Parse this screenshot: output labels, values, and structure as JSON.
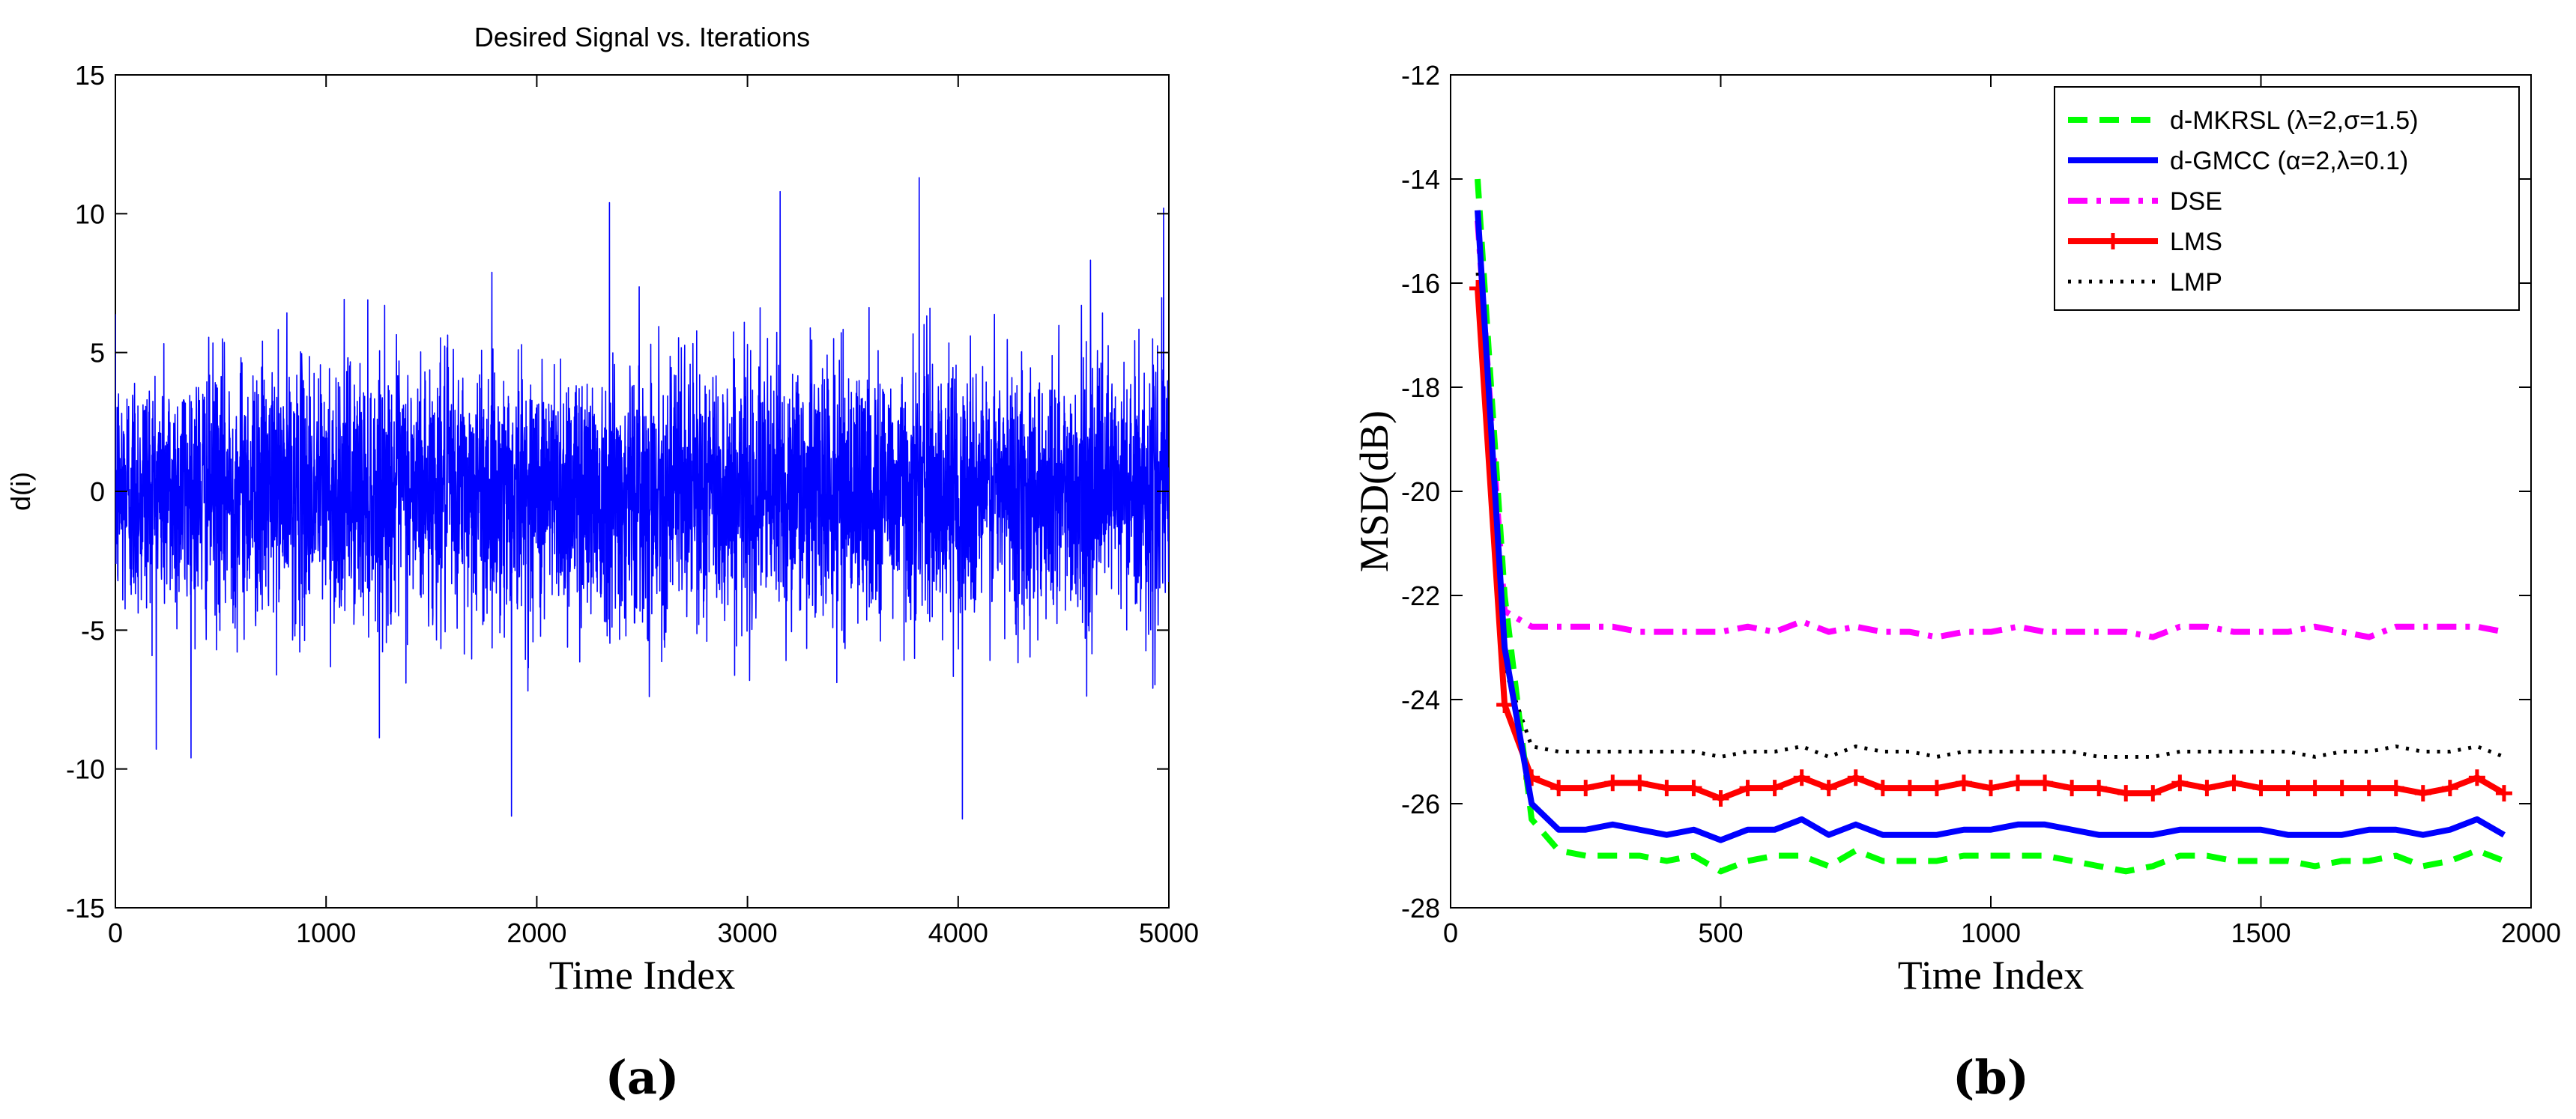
{
  "chart_data": [
    {
      "type": "line",
      "panel_label_open": "(",
      "panel_label_letter": "a",
      "panel_label_close": ")",
      "title": "Desired Signal vs. Iterations",
      "xlabel": "Time Index",
      "ylabel": "d(i)",
      "xlim": [
        0,
        5000
      ],
      "ylim": [
        -15,
        15
      ],
      "xticks": [
        0,
        1000,
        2000,
        3000,
        4000,
        5000
      ],
      "yticks": [
        -15,
        -10,
        -5,
        0,
        5,
        10,
        15
      ],
      "color": "#0000ff",
      "series": [
        {
          "name": "d(i)",
          "n_samples": 5000,
          "description_values": "noisy signal, mostly within -7..7, spikes to about 12 and -12",
          "peaks": [
            {
              "x": 1880,
              "y": -11.7
            },
            {
              "x": 4020,
              "y": -11.8
            },
            {
              "x": 3815,
              "y": 11.3
            },
            {
              "x": 3155,
              "y": 10.8
            },
            {
              "x": 4975,
              "y": 10.2
            },
            {
              "x": 2345,
              "y": 10.4
            }
          ]
        }
      ]
    },
    {
      "type": "line",
      "panel_label_open": "(",
      "panel_label_letter": "b",
      "panel_label_close": ")",
      "title": "",
      "xlabel": "Time Index",
      "ylabel": "MSD(dB)",
      "xlim": [
        0,
        2000
      ],
      "ylim": [
        -28,
        -12
      ],
      "xticks": [
        0,
        500,
        1000,
        1500,
        2000
      ],
      "yticks": [
        -28,
        -26,
        -24,
        -22,
        -20,
        -18,
        -16,
        -14,
        -12
      ],
      "legend_position": "top-right",
      "x": [
        50,
        100,
        150,
        200,
        250,
        300,
        350,
        400,
        450,
        500,
        550,
        600,
        650,
        700,
        750,
        800,
        850,
        900,
        950,
        1000,
        1050,
        1100,
        1150,
        1200,
        1250,
        1300,
        1350,
        1400,
        1450,
        1500,
        1550,
        1600,
        1650,
        1700,
        1750,
        1800,
        1850,
        1900,
        1950
      ],
      "series": [
        {
          "name": "d-MKRSL (λ=2,σ=1.5)",
          "color": "#00ff00",
          "style": "dashed",
          "values": [
            -14.0,
            -22.0,
            -26.3,
            -26.9,
            -27.0,
            -27.0,
            -27.0,
            -27.1,
            -27.0,
            -27.3,
            -27.1,
            -27.0,
            -27.0,
            -27.2,
            -26.9,
            -27.1,
            -27.1,
            -27.1,
            -27.0,
            -27.0,
            -27.0,
            -27.0,
            -27.1,
            -27.2,
            -27.3,
            -27.2,
            -27.0,
            -27.0,
            -27.1,
            -27.1,
            -27.1,
            -27.2,
            -27.1,
            -27.1,
            -27.0,
            -27.2,
            -27.1,
            -26.9,
            -27.1
          ]
        },
        {
          "name": "d-GMCC (α=2,λ=0.1)",
          "color": "#0000ff",
          "style": "solid",
          "values": [
            -14.6,
            -23.0,
            -26.0,
            -26.5,
            -26.5,
            -26.4,
            -26.5,
            -26.6,
            -26.5,
            -26.7,
            -26.5,
            -26.5,
            -26.3,
            -26.6,
            -26.4,
            -26.6,
            -26.6,
            -26.6,
            -26.5,
            -26.5,
            -26.4,
            -26.4,
            -26.5,
            -26.6,
            -26.6,
            -26.6,
            -26.5,
            -26.5,
            -26.5,
            -26.5,
            -26.6,
            -26.6,
            -26.6,
            -26.5,
            -26.5,
            -26.6,
            -26.5,
            -26.3,
            -26.6
          ]
        },
        {
          "name": "DSE",
          "color": "#ff00ff",
          "style": "dash-dot",
          "values": [
            -14.8,
            -22.3,
            -22.6,
            -22.6,
            -22.6,
            -22.6,
            -22.7,
            -22.7,
            -22.7,
            -22.7,
            -22.6,
            -22.7,
            -22.5,
            -22.7,
            -22.6,
            -22.7,
            -22.7,
            -22.8,
            -22.7,
            -22.7,
            -22.6,
            -22.7,
            -22.7,
            -22.7,
            -22.7,
            -22.8,
            -22.6,
            -22.6,
            -22.7,
            -22.7,
            -22.7,
            -22.6,
            -22.7,
            -22.8,
            -22.6,
            -22.6,
            -22.6,
            -22.6,
            -22.7
          ]
        },
        {
          "name": "LMS",
          "color": "#ff0000",
          "style": "solid-plus",
          "values": [
            -16.1,
            -24.1,
            -25.5,
            -25.7,
            -25.7,
            -25.6,
            -25.6,
            -25.7,
            -25.7,
            -25.9,
            -25.7,
            -25.7,
            -25.5,
            -25.7,
            -25.5,
            -25.7,
            -25.7,
            -25.7,
            -25.6,
            -25.7,
            -25.6,
            -25.6,
            -25.7,
            -25.7,
            -25.8,
            -25.8,
            -25.6,
            -25.7,
            -25.6,
            -25.7,
            -25.7,
            -25.7,
            -25.7,
            -25.7,
            -25.7,
            -25.8,
            -25.7,
            -25.5,
            -25.8
          ]
        },
        {
          "name": "LMP",
          "color": "#000000",
          "style": "dotted",
          "values": [
            -15.8,
            -23.4,
            -24.9,
            -25.0,
            -25.0,
            -25.0,
            -25.0,
            -25.0,
            -25.0,
            -25.1,
            -25.0,
            -25.0,
            -24.9,
            -25.1,
            -24.9,
            -25.0,
            -25.0,
            -25.1,
            -25.0,
            -25.0,
            -25.0,
            -25.0,
            -25.0,
            -25.1,
            -25.1,
            -25.1,
            -25.0,
            -25.0,
            -25.0,
            -25.0,
            -25.0,
            -25.1,
            -25.0,
            -25.0,
            -24.9,
            -25.0,
            -25.0,
            -24.9,
            -25.1
          ]
        }
      ]
    }
  ]
}
